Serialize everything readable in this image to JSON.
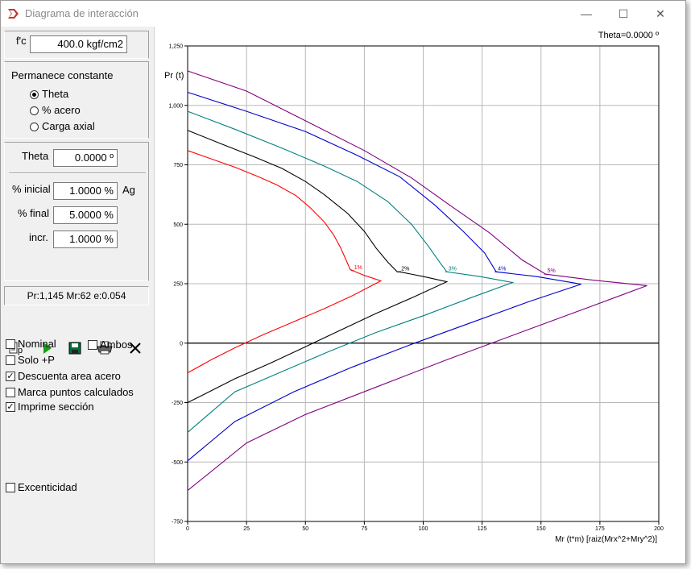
{
  "window": {
    "title": "Diagrama de interacción",
    "minimize_glyph": "—",
    "maximize_glyph": "☐",
    "close_glyph": "✕"
  },
  "form": {
    "fc_label": "f'c",
    "fc_value": "400.0 kgf/cm2",
    "constant_title": "Permanece constante",
    "radio_options": [
      "Theta",
      "% acero",
      "Carga axial"
    ],
    "selected_radio": "Theta",
    "theta_label": "Theta",
    "theta_value": "0.0000 º",
    "pct_initial_label": "% inicial",
    "pct_initial_value": "1.0000 %",
    "pct_initial_unit": "Ag",
    "pct_final_label": "% final",
    "pct_final_value": "5.0000 %",
    "incr_label": "incr.",
    "incr_value": "1.0000 %"
  },
  "status": {
    "text": "Pr:1,145 Mr:62 e:0.054"
  },
  "toolbar": {
    "p_label": "p",
    "icons": [
      "properties-icon",
      "run-icon",
      "save-icon",
      "print-icon",
      "close-icon"
    ]
  },
  "options": {
    "nominal": {
      "label": "Nominal",
      "checked": false
    },
    "ambos": {
      "label": "Ambos",
      "checked": false
    },
    "solo_p": {
      "label": "Solo +P",
      "checked": false
    },
    "descuenta": {
      "label": "Descuenta area acero",
      "checked": true
    },
    "marca": {
      "label": "Marca puntos calculados",
      "checked": false
    },
    "imprime": {
      "label": "Imprime sección",
      "checked": true
    },
    "excentricidad": {
      "label": "Excenticidad",
      "checked": false
    }
  },
  "chart_data": {
    "type": "line",
    "title": "Theta=0.0000 º",
    "xlabel": "Mr (t*m) [raiz(Mrx^2+Mry^2)]",
    "ylabel": "Pr (t)",
    "xlim": [
      0,
      200
    ],
    "ylim": [
      -750,
      1250
    ],
    "xticks": [
      0,
      25,
      50,
      75,
      100,
      125,
      150,
      175,
      200
    ],
    "yticks": [
      -750,
      -500,
      -250,
      0,
      250,
      500,
      750,
      1000,
      1250
    ],
    "ytick_labels": [
      "-750",
      "-500",
      "-250",
      "0",
      "250",
      "500",
      "750",
      "1,000",
      "1,250"
    ],
    "grid": true,
    "series": [
      {
        "name": "1%",
        "color": "#ff0000",
        "label_at": [
          70,
          305
        ],
        "points": [
          [
            0,
            810
          ],
          [
            10,
            775
          ],
          [
            20,
            740
          ],
          [
            30,
            700
          ],
          [
            38,
            665
          ],
          [
            46,
            620
          ],
          [
            52,
            570
          ],
          [
            58,
            510
          ],
          [
            62,
            455
          ],
          [
            65,
            400
          ],
          [
            67,
            355
          ],
          [
            69,
            310
          ],
          [
            70,
            305
          ],
          [
            75,
            285
          ],
          [
            82,
            262
          ],
          [
            70,
            200
          ],
          [
            58,
            145
          ],
          [
            45,
            90
          ],
          [
            32,
            35
          ],
          [
            20,
            -20
          ],
          [
            10,
            -70
          ],
          [
            0,
            -125
          ]
        ]
      },
      {
        "name": "2%",
        "color": "#000000",
        "label_at": [
          90,
          300
        ],
        "points": [
          [
            0,
            895
          ],
          [
            15,
            835
          ],
          [
            28,
            785
          ],
          [
            40,
            735
          ],
          [
            50,
            680
          ],
          [
            58,
            625
          ],
          [
            68,
            545
          ],
          [
            75,
            470
          ],
          [
            80,
            400
          ],
          [
            85,
            340
          ],
          [
            89,
            300
          ],
          [
            90,
            300
          ],
          [
            100,
            280
          ],
          [
            110,
            258
          ],
          [
            95,
            190
          ],
          [
            80,
            125
          ],
          [
            65,
            55
          ],
          [
            50,
            -15
          ],
          [
            35,
            -85
          ],
          [
            20,
            -150
          ],
          [
            10,
            -200
          ],
          [
            0,
            -250
          ]
        ]
      },
      {
        "name": "3%",
        "color": "#008080",
        "label_at": [
          110,
          300
        ],
        "points": [
          [
            0,
            975
          ],
          [
            20,
            900
          ],
          [
            40,
            820
          ],
          [
            58,
            745
          ],
          [
            72,
            680
          ],
          [
            85,
            595
          ],
          [
            95,
            500
          ],
          [
            102,
            410
          ],
          [
            107,
            340
          ],
          [
            110,
            300
          ],
          [
            124,
            280
          ],
          [
            138,
            255
          ],
          [
            120,
            190
          ],
          [
            100,
            115
          ],
          [
            80,
            45
          ],
          [
            60,
            -35
          ],
          [
            40,
            -120
          ],
          [
            20,
            -205
          ],
          [
            0,
            -375
          ]
        ]
      },
      {
        "name": "4%",
        "color": "#0000cc",
        "label_at": [
          131,
          300
        ],
        "points": [
          [
            0,
            1055
          ],
          [
            25,
            975
          ],
          [
            50,
            890
          ],
          [
            72,
            790
          ],
          [
            90,
            700
          ],
          [
            105,
            580
          ],
          [
            117,
            470
          ],
          [
            126,
            380
          ],
          [
            131,
            300
          ],
          [
            148,
            280
          ],
          [
            167,
            248
          ],
          [
            145,
            175
          ],
          [
            120,
            85
          ],
          [
            95,
            -5
          ],
          [
            70,
            -100
          ],
          [
            45,
            -205
          ],
          [
            20,
            -330
          ],
          [
            0,
            -495
          ]
        ]
      },
      {
        "name": "5%",
        "color": "#800080",
        "label_at": [
          152,
          290
        ],
        "points": [
          [
            0,
            1145
          ],
          [
            25,
            1060
          ],
          [
            50,
            935
          ],
          [
            75,
            810
          ],
          [
            95,
            695
          ],
          [
            112,
            575
          ],
          [
            128,
            465
          ],
          [
            142,
            350
          ],
          [
            152,
            290
          ],
          [
            172,
            265
          ],
          [
            195,
            242
          ],
          [
            170,
            150
          ],
          [
            140,
            40
          ],
          [
            110,
            -70
          ],
          [
            80,
            -185
          ],
          [
            50,
            -300
          ],
          [
            25,
            -420
          ],
          [
            0,
            -620
          ]
        ]
      }
    ]
  }
}
